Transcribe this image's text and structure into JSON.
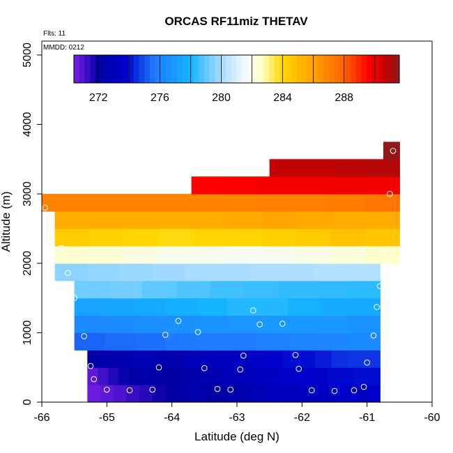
{
  "chart_data": {
    "type": "heatmap",
    "title": "ORCAS RF11miz THETAV",
    "xlabel": "Latitude (deg N)",
    "ylabel": "Altitude (m)",
    "xlim": [
      -66,
      -60
    ],
    "ylim": [
      0,
      5200
    ],
    "x_ticks": [
      -66,
      -65,
      -64,
      -63,
      -62,
      -61,
      -60
    ],
    "x_tick_labels": [
      "-66",
      "-65",
      "-64",
      "-63",
      "-62",
      "-61",
      "-60"
    ],
    "y_ticks": [
      0,
      1000,
      2000,
      3000,
      4000,
      5000
    ],
    "y_tick_labels": [
      "0",
      "1000",
      "2000",
      "3000",
      "4000",
      "5000"
    ],
    "annotations": {
      "flights": "Flts: 11",
      "date": "MMDD: 0212"
    },
    "colorbar": {
      "range": [
        270.4,
        291.6
      ],
      "ticks": [
        272,
        276,
        280,
        284,
        288
      ],
      "tick_labels": [
        "272",
        "276",
        "280",
        "284",
        "288"
      ],
      "stops": [
        {
          "v": 270.4,
          "c": "#7d1fe6"
        },
        {
          "v": 272.0,
          "c": "#0000a5"
        },
        {
          "v": 273.8,
          "c": "#0000cc"
        },
        {
          "v": 275.6,
          "c": "#1e78ff"
        },
        {
          "v": 278.0,
          "c": "#14b4ff"
        },
        {
          "v": 280.0,
          "c": "#aadcff"
        },
        {
          "v": 281.6,
          "c": "#f5fbff"
        },
        {
          "v": 282.6,
          "c": "#ffffcc"
        },
        {
          "v": 284.0,
          "c": "#ffd700"
        },
        {
          "v": 286.0,
          "c": "#ffa000"
        },
        {
          "v": 288.0,
          "c": "#ff6400"
        },
        {
          "v": 289.6,
          "c": "#ff0000"
        },
        {
          "v": 290.6,
          "c": "#c80000"
        },
        {
          "v": 291.6,
          "c": "#8c1a1a"
        }
      ]
    },
    "layers": [
      {
        "alt": [
          0,
          250
        ],
        "lat": [
          -65.3,
          -63.5
        ],
        "values": [
          270.6,
          270.8,
          271.0,
          271.3,
          271.5,
          271.8,
          272.0,
          272.2,
          272.4
        ]
      },
      {
        "alt": [
          0,
          250
        ],
        "lat": [
          -63.5,
          -60.8
        ],
        "values": [
          272.0,
          272.1,
          272.3,
          272.5,
          272.8,
          273.0,
          273.2,
          273.0,
          273.3,
          273.5,
          273.4,
          273.6,
          273.7,
          273.5,
          273.8
        ]
      },
      {
        "alt": [
          250,
          500
        ],
        "lat": [
          -65.3,
          -64.0
        ],
        "values": [
          270.8,
          271.2,
          271.6,
          271.9,
          272.2,
          272.4,
          272.2,
          272.0
        ]
      },
      {
        "alt": [
          250,
          500
        ],
        "lat": [
          -64.0,
          -60.8
        ],
        "values": [
          272.0,
          272.2,
          272.4,
          272.6,
          272.9,
          273.0,
          273.2,
          273.4,
          273.6,
          273.8,
          273.7,
          273.6,
          273.9,
          273.9,
          274.0,
          274.0
        ]
      },
      {
        "alt": [
          500,
          750
        ],
        "lat": [
          -65.3,
          -60.8
        ],
        "values": [
          272.2,
          272.4,
          272.6,
          272.8,
          272.6,
          272.4,
          272.8,
          273.0,
          273.2,
          273.4,
          273.6,
          273.8,
          274.0,
          274.0,
          274.2,
          274.5,
          274.6,
          274.6
        ]
      },
      {
        "alt": [
          750,
          1000
        ],
        "lat": [
          -65.5,
          -60.8
        ],
        "values": [
          275.3,
          275.4,
          275.5,
          275.7,
          275.8,
          275.9,
          276.0,
          276.1,
          276.2,
          276.3
        ]
      },
      {
        "alt": [
          1000,
          1250
        ],
        "lat": [
          -65.5,
          -60.8
        ],
        "values": [
          276.3,
          276.4,
          276.5,
          276.6,
          276.7,
          276.8,
          276.9,
          276.9,
          276.8,
          276.7
        ]
      },
      {
        "alt": [
          1250,
          1500
        ],
        "lat": [
          -65.5,
          -60.8
        ],
        "values": [
          277.3,
          277.4,
          277.6,
          277.8,
          278.0,
          278.2,
          278.2,
          277.9,
          277.7,
          277.6
        ]
      },
      {
        "alt": [
          1500,
          1750
        ],
        "lat": [
          -65.5,
          -60.8
        ],
        "values": [
          279.2,
          279.3,
          279.0,
          278.8,
          278.6,
          278.5,
          278.4,
          278.4,
          278.3
        ]
      },
      {
        "alt": [
          1750,
          2000
        ],
        "lat": [
          -65.8,
          -60.8
        ],
        "values": [
          279.6,
          279.7,
          279.8,
          279.9,
          280.0,
          280.0,
          280.1,
          280.1,
          280.2,
          280.2
        ]
      },
      {
        "alt": [
          2000,
          2250
        ],
        "lat": [
          -65.8,
          -60.5
        ],
        "values": [
          282.5,
          282.4,
          282.2,
          282.0,
          281.9,
          281.8,
          281.9,
          282.1,
          282.3,
          282.6
        ]
      },
      {
        "alt": [
          2250,
          2500
        ],
        "lat": [
          -65.8,
          -60.5
        ],
        "values": [
          284.4,
          284.2,
          284.0,
          283.9,
          284.0,
          284.1,
          284.3,
          284.5,
          284.8,
          284.6
        ]
      },
      {
        "alt": [
          2500,
          2750
        ],
        "lat": [
          -65.8,
          -60.5
        ],
        "values": [
          285.6,
          285.6,
          285.5,
          285.5,
          285.6,
          285.7,
          285.8,
          285.7,
          285.6,
          285.6
        ]
      },
      {
        "alt": [
          2750,
          3000
        ],
        "lat": [
          -66.0,
          -60.5
        ],
        "values": [
          287.0,
          287.0,
          287.0,
          287.0,
          287.0,
          287.0,
          287.1,
          287.1,
          287.2,
          287.4
        ]
      },
      {
        "alt": [
          3000,
          3250
        ],
        "lat": [
          -63.7,
          -60.5
        ],
        "values": [
          289.6,
          289.7,
          289.8,
          289.8,
          289.8,
          289.8
        ]
      },
      {
        "alt": [
          3250,
          3500
        ],
        "lat": [
          -62.5,
          -60.5
        ],
        "values": [
          290.7,
          290.7,
          290.8,
          290.9
        ]
      },
      {
        "alt": [
          3500,
          3750
        ],
        "lat": [
          -60.75,
          -60.5
        ],
        "values": [
          291.5
        ]
      }
    ],
    "points": [
      {
        "lat": -65.95,
        "alt": 2800
      },
      {
        "lat": -65.7,
        "alt": 2220
      },
      {
        "lat": -65.6,
        "alt": 1860
      },
      {
        "lat": -65.5,
        "alt": 1500
      },
      {
        "lat": -65.35,
        "alt": 950
      },
      {
        "lat": -65.25,
        "alt": 520
      },
      {
        "lat": -65.2,
        "alt": 330
      },
      {
        "lat": -65.0,
        "alt": 180
      },
      {
        "lat": -64.65,
        "alt": 170
      },
      {
        "lat": -64.3,
        "alt": 180
      },
      {
        "lat": -64.2,
        "alt": 500
      },
      {
        "lat": -64.1,
        "alt": 970
      },
      {
        "lat": -63.9,
        "alt": 1170
      },
      {
        "lat": -63.6,
        "alt": 1010
      },
      {
        "lat": -63.5,
        "alt": 490
      },
      {
        "lat": -63.3,
        "alt": 190
      },
      {
        "lat": -63.1,
        "alt": 180
      },
      {
        "lat": -62.95,
        "alt": 470
      },
      {
        "lat": -62.9,
        "alt": 670
      },
      {
        "lat": -62.75,
        "alt": 1320
      },
      {
        "lat": -62.65,
        "alt": 1120
      },
      {
        "lat": -62.3,
        "alt": 1130
      },
      {
        "lat": -62.1,
        "alt": 680
      },
      {
        "lat": -62.05,
        "alt": 480
      },
      {
        "lat": -61.85,
        "alt": 170
      },
      {
        "lat": -61.5,
        "alt": 160
      },
      {
        "lat": -61.2,
        "alt": 170
      },
      {
        "lat": -61.05,
        "alt": 220
      },
      {
        "lat": -61.0,
        "alt": 570
      },
      {
        "lat": -60.9,
        "alt": 960
      },
      {
        "lat": -60.85,
        "alt": 1370
      },
      {
        "lat": -60.8,
        "alt": 1670
      },
      {
        "lat": -60.75,
        "alt": 2150
      },
      {
        "lat": -60.65,
        "alt": 3000
      },
      {
        "lat": -60.6,
        "alt": 3620
      }
    ]
  }
}
